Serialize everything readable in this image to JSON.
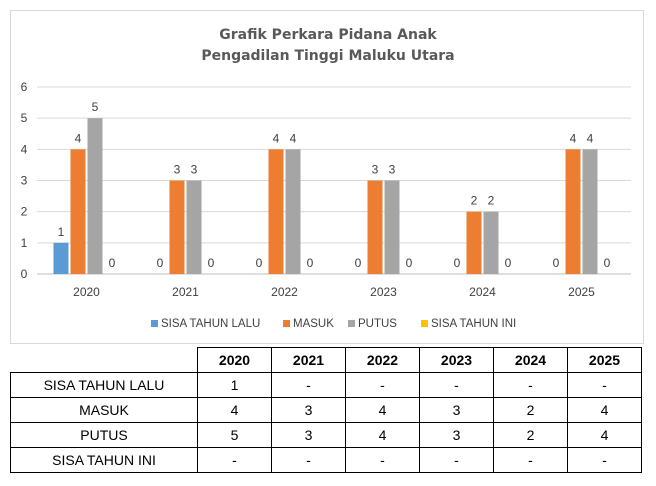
{
  "chart_data": {
    "type": "bar",
    "title": [
      "Grafik Perkara Pidana Anak",
      "Pengadilan Tinggi Maluku Utara"
    ],
    "categories": [
      "2020",
      "2021",
      "2022",
      "2023",
      "2024",
      "2025"
    ],
    "ylim": [
      0,
      6
    ],
    "yticks": [
      0,
      1,
      2,
      3,
      4,
      5,
      6
    ],
    "grid": true,
    "legend_position": "bottom",
    "series": [
      {
        "name": "SISA TAHUN LALU",
        "color": "#5b9bd5",
        "values": [
          1,
          0,
          0,
          0,
          0,
          0
        ]
      },
      {
        "name": "MASUK",
        "color": "#ed7d31",
        "values": [
          4,
          3,
          4,
          3,
          2,
          4
        ]
      },
      {
        "name": "PUTUS",
        "color": "#a5a5a5",
        "values": [
          5,
          3,
          4,
          3,
          2,
          4
        ]
      },
      {
        "name": "SISA TAHUN INI",
        "color": "#ffc000",
        "values": [
          0,
          0,
          0,
          0,
          0,
          0
        ]
      }
    ]
  },
  "table": {
    "headers": [
      "2020",
      "2021",
      "2022",
      "2023",
      "2024",
      "2025"
    ],
    "rows": [
      {
        "label": "SISA TAHUN LALU",
        "cells": [
          "1",
          "-",
          "-",
          "-",
          "-",
          "-"
        ]
      },
      {
        "label": "MASUK",
        "cells": [
          "4",
          "3",
          "4",
          "3",
          "2",
          "4"
        ]
      },
      {
        "label": "PUTUS",
        "cells": [
          "5",
          "3",
          "4",
          "3",
          "2",
          "4"
        ]
      },
      {
        "label": "SISA TAHUN INI",
        "cells": [
          "-",
          "-",
          "-",
          "-",
          "-",
          "-"
        ]
      }
    ]
  }
}
